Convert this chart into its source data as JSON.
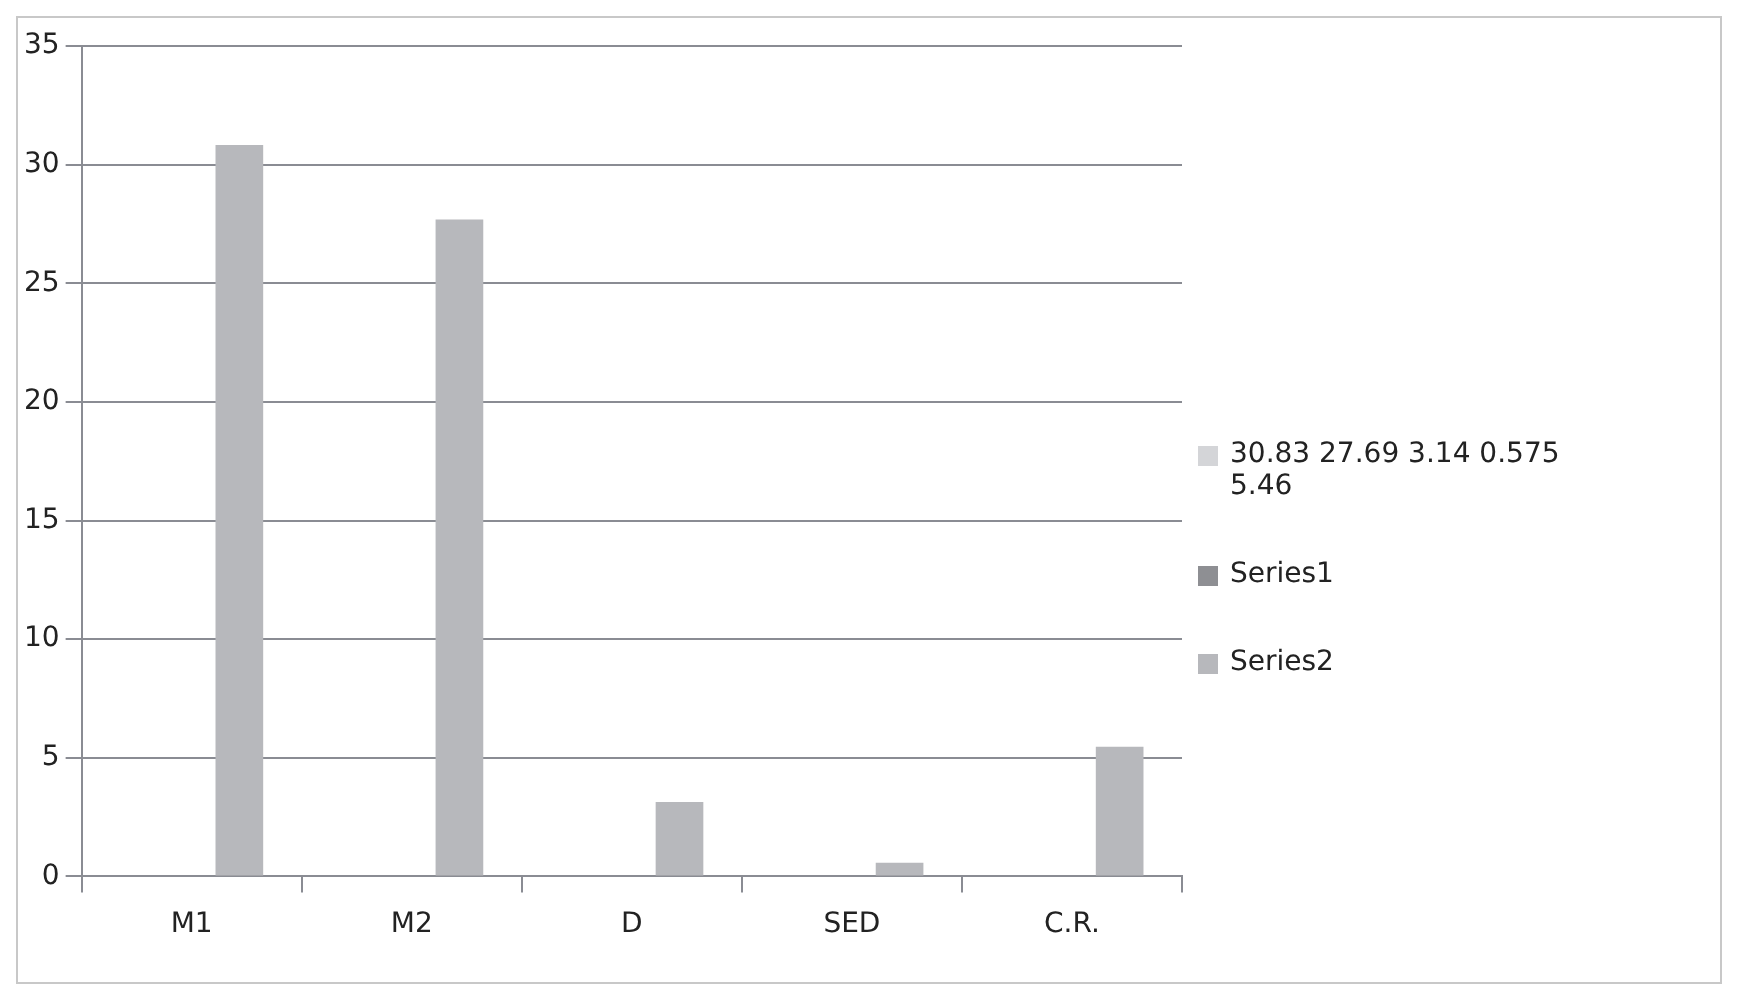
{
  "chart_data": {
    "type": "bar",
    "categories": [
      "M1",
      "M2",
      "D",
      "SED",
      "C.R."
    ],
    "series": [
      {
        "name": "30.83 27.69 3.14 0.575 5.46",
        "color": "#d4d5d8",
        "values": [
          null,
          null,
          null,
          null,
          null
        ]
      },
      {
        "name": "Series1",
        "color": "#8e8f93",
        "values": [
          null,
          null,
          null,
          null,
          null
        ]
      },
      {
        "name": "Series2",
        "color": "#b7b8bc",
        "values": [
          30.83,
          27.69,
          3.14,
          0.575,
          5.46
        ]
      }
    ],
    "ylim": [
      0,
      35
    ],
    "yticks": [
      0,
      5,
      10,
      15,
      20,
      25,
      30,
      35
    ],
    "grid": "y",
    "legend": "right"
  }
}
